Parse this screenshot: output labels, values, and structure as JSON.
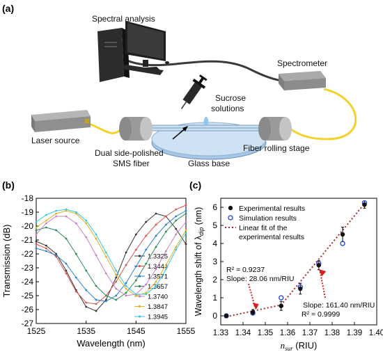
{
  "panel_a": {
    "label": "(a)",
    "spectral_analysis": "Spectral analysis",
    "spectrometer": "Spectrometer",
    "sucrose_line1": "Sucrose",
    "sucrose_line2": "solutions",
    "laser_source": "Laser source",
    "fiber_rolling_stage": "Fiber rolling stage",
    "sms_line1": "Dual side-polished",
    "sms_line2": "SMS fiber",
    "glass_base": "Glass base"
  },
  "panel_b": {
    "label": "(b)",
    "xlabel": "Wavelength (nm)",
    "ylabel": "Transmission (dB)"
  },
  "panel_c": {
    "label": "(c)",
    "ylabel": "Wavelength shift of λ",
    "ylabel_sub": "dip",
    "ylabel_unit": " (nm)",
    "xlabel_var": "n",
    "xlabel_sub": "sur",
    "xlabel_unit": " (RIU)",
    "r2_low": "R² = 0.9237",
    "slope_low": "Slope: 28.06 nm/RIU",
    "slope_high": "Slope: 161.40 nm/RIU",
    "r2_high": "R² = 0.9999"
  },
  "colors": {
    "series": [
      "#333333",
      "#d9534f",
      "#2a7fc9",
      "#2e8b57",
      "#c77dc7",
      "#e0b020",
      "#35c6e6"
    ],
    "fit": "#a52a2a",
    "arrow": "#d62020",
    "fiber": "#f2d22c"
  },
  "chart_data": [
    {
      "type": "line",
      "xlabel": "Wavelength (nm)",
      "ylabel": "Transmission (dB)",
      "xlim": [
        1525,
        1555
      ],
      "ylim": [
        -27,
        -18
      ],
      "xticks": [
        1525,
        1535,
        1545,
        1555
      ],
      "yticks": [
        -27,
        -26,
        -25,
        -24,
        -23,
        -22,
        -21,
        -20,
        -19,
        -18
      ],
      "x": [
        1525,
        1527,
        1529,
        1531,
        1533,
        1535,
        1537,
        1539,
        1541,
        1543,
        1545,
        1547,
        1549,
        1551,
        1553,
        1555
      ],
      "series": [
        {
          "name": "1.3325",
          "values": [
            -21.1,
            -21.4,
            -22.0,
            -23.2,
            -24.6,
            -25.8,
            -26.1,
            -25.3,
            -23.7,
            -21.9,
            -20.6,
            -19.7,
            -19.1,
            -19.3,
            -20.2,
            -21.3
          ]
        },
        {
          "name": "1.3444",
          "values": [
            -21.3,
            -21.6,
            -22.2,
            -23.4,
            -24.7,
            -25.5,
            -25.6,
            -25.0,
            -24.0,
            -22.8,
            -21.7,
            -20.7,
            -19.9,
            -19.3,
            -18.8,
            -18.5
          ]
        },
        {
          "name": "1.3571",
          "values": [
            -21.6,
            -21.8,
            -22.1,
            -22.7,
            -23.7,
            -24.6,
            -25.3,
            -25.4,
            -25.0,
            -24.1,
            -22.9,
            -21.7,
            -20.7,
            -19.9,
            -19.3,
            -18.9
          ]
        },
        {
          "name": "1.3657",
          "values": [
            -20.3,
            -20.1,
            -20.3,
            -20.9,
            -22.0,
            -23.2,
            -24.3,
            -25.0,
            -25.3,
            -24.8,
            -23.9,
            -22.7,
            -21.5,
            -20.4,
            -19.6,
            -19.1
          ]
        },
        {
          "name": "1.3740",
          "values": [
            -20.6,
            -19.8,
            -19.3,
            -19.3,
            -19.8,
            -20.8,
            -22.1,
            -23.4,
            -24.5,
            -25.0,
            -24.9,
            -24.2,
            -23.1,
            -21.8,
            -20.6,
            -19.7
          ]
        },
        {
          "name": "1.3847",
          "values": [
            -20.1,
            -19.6,
            -19.1,
            -18.9,
            -19.1,
            -19.8,
            -20.9,
            -22.2,
            -23.5,
            -24.5,
            -25.0,
            -24.8,
            -24.0,
            -22.8,
            -21.5,
            -20.3
          ]
        },
        {
          "name": "1.3945",
          "values": [
            -19.7,
            -19.2,
            -18.9,
            -18.8,
            -19.0,
            -19.6,
            -20.6,
            -21.9,
            -23.2,
            -24.3,
            -24.9,
            -24.9,
            -24.3,
            -23.1,
            -21.7,
            -20.5
          ]
        }
      ]
    },
    {
      "type": "scatter",
      "xlabel": "n_sur (RIU)",
      "ylabel": "Wavelength shift of λ_dip (nm)",
      "xlim": [
        1.33,
        1.4
      ],
      "ylim": [
        -0.5,
        6.5
      ],
      "xticks": [
        1.33,
        1.34,
        1.35,
        1.36,
        1.37,
        1.38,
        1.39,
        1.4
      ],
      "yticks": [
        0,
        1,
        2,
        3,
        4,
        5,
        6
      ],
      "legend": "top-left",
      "series": [
        {
          "name": "Experimental results",
          "x": [
            1.3325,
            1.3444,
            1.3571,
            1.3657,
            1.374,
            1.3847,
            1.3945
          ],
          "values": [
            0.0,
            0.2,
            0.55,
            1.5,
            2.8,
            4.5,
            6.15
          ],
          "errors": [
            0.1,
            0.15,
            0.25,
            0.3,
            0.25,
            0.4,
            0.2
          ]
        },
        {
          "name": "Simulation results",
          "x": [
            1.3325,
            1.3444,
            1.3571,
            1.3657,
            1.374,
            1.3847,
            1.3945
          ],
          "values": [
            0.0,
            0.15,
            1.0,
            1.6,
            2.9,
            4.0,
            6.25
          ]
        },
        {
          "name": "Linear fit of the experimental results",
          "x": [
            1.3325,
            1.3571,
            1.3945
          ],
          "values": [
            -0.05,
            0.6,
            6.2
          ]
        }
      ],
      "legend_entries": [
        "Experimental results",
        "Simulation results",
        "Linear fit of the",
        "experimental results"
      ]
    }
  ]
}
